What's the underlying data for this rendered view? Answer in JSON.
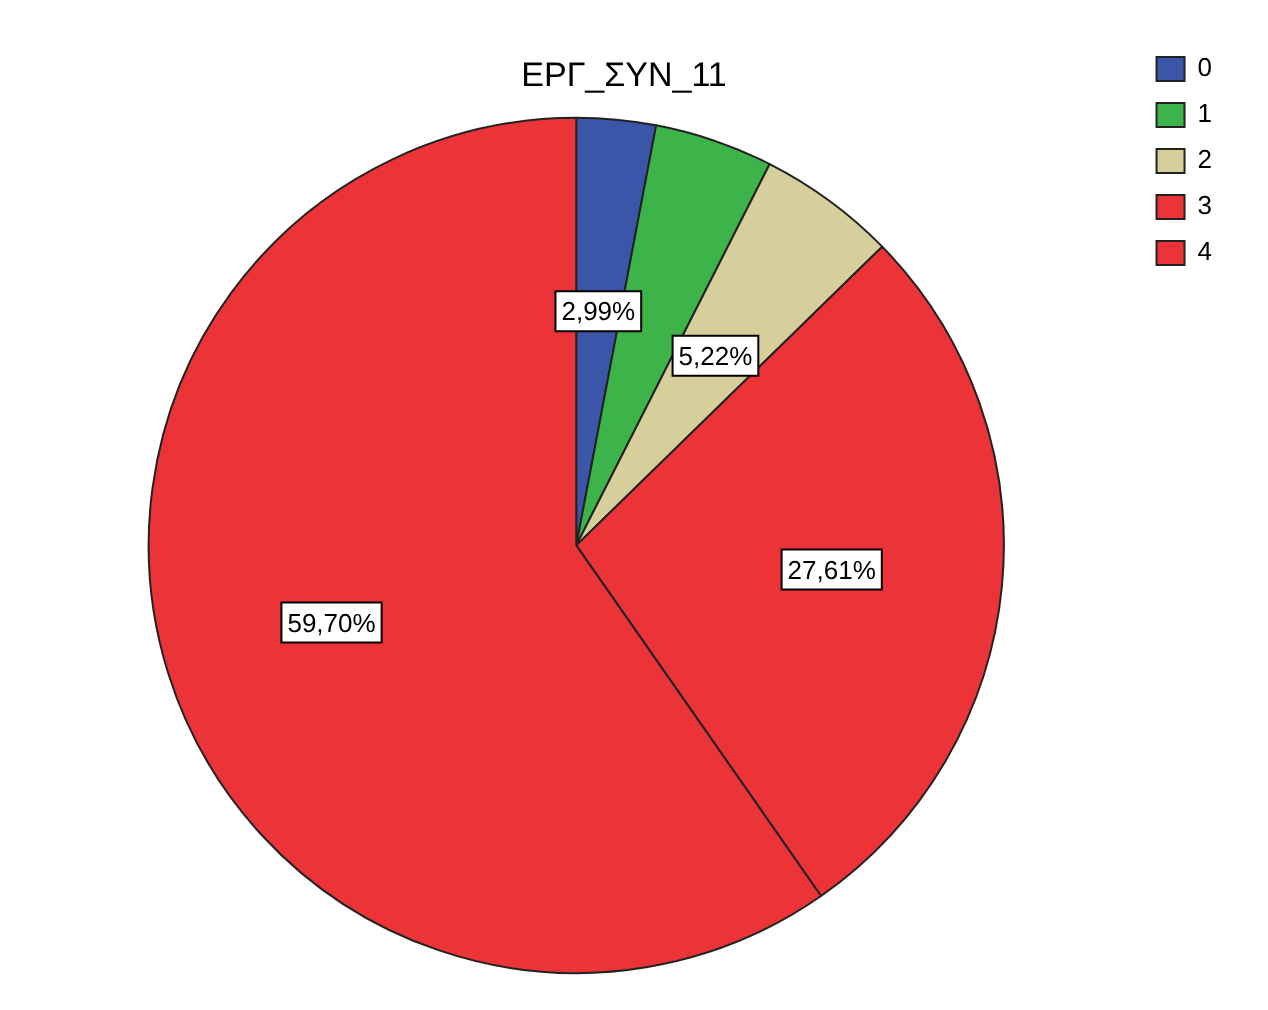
{
  "chart_data": {
    "type": "pie",
    "title": "ΕΡΓ_ΣΥΝ_11",
    "categories": [
      "0",
      "1",
      "2",
      "3",
      "4"
    ],
    "values": [
      2.99,
      4.48,
      5.22,
      27.61,
      59.7
    ],
    "value_labels": [
      "2,99%",
      null,
      "5,22%",
      "27,61%",
      "59,70%"
    ],
    "colors": [
      "#3b55a8",
      "#3cb44a",
      "#d6cf9c",
      "#ec3338",
      "#ec3338"
    ],
    "legend": "top right"
  }
}
